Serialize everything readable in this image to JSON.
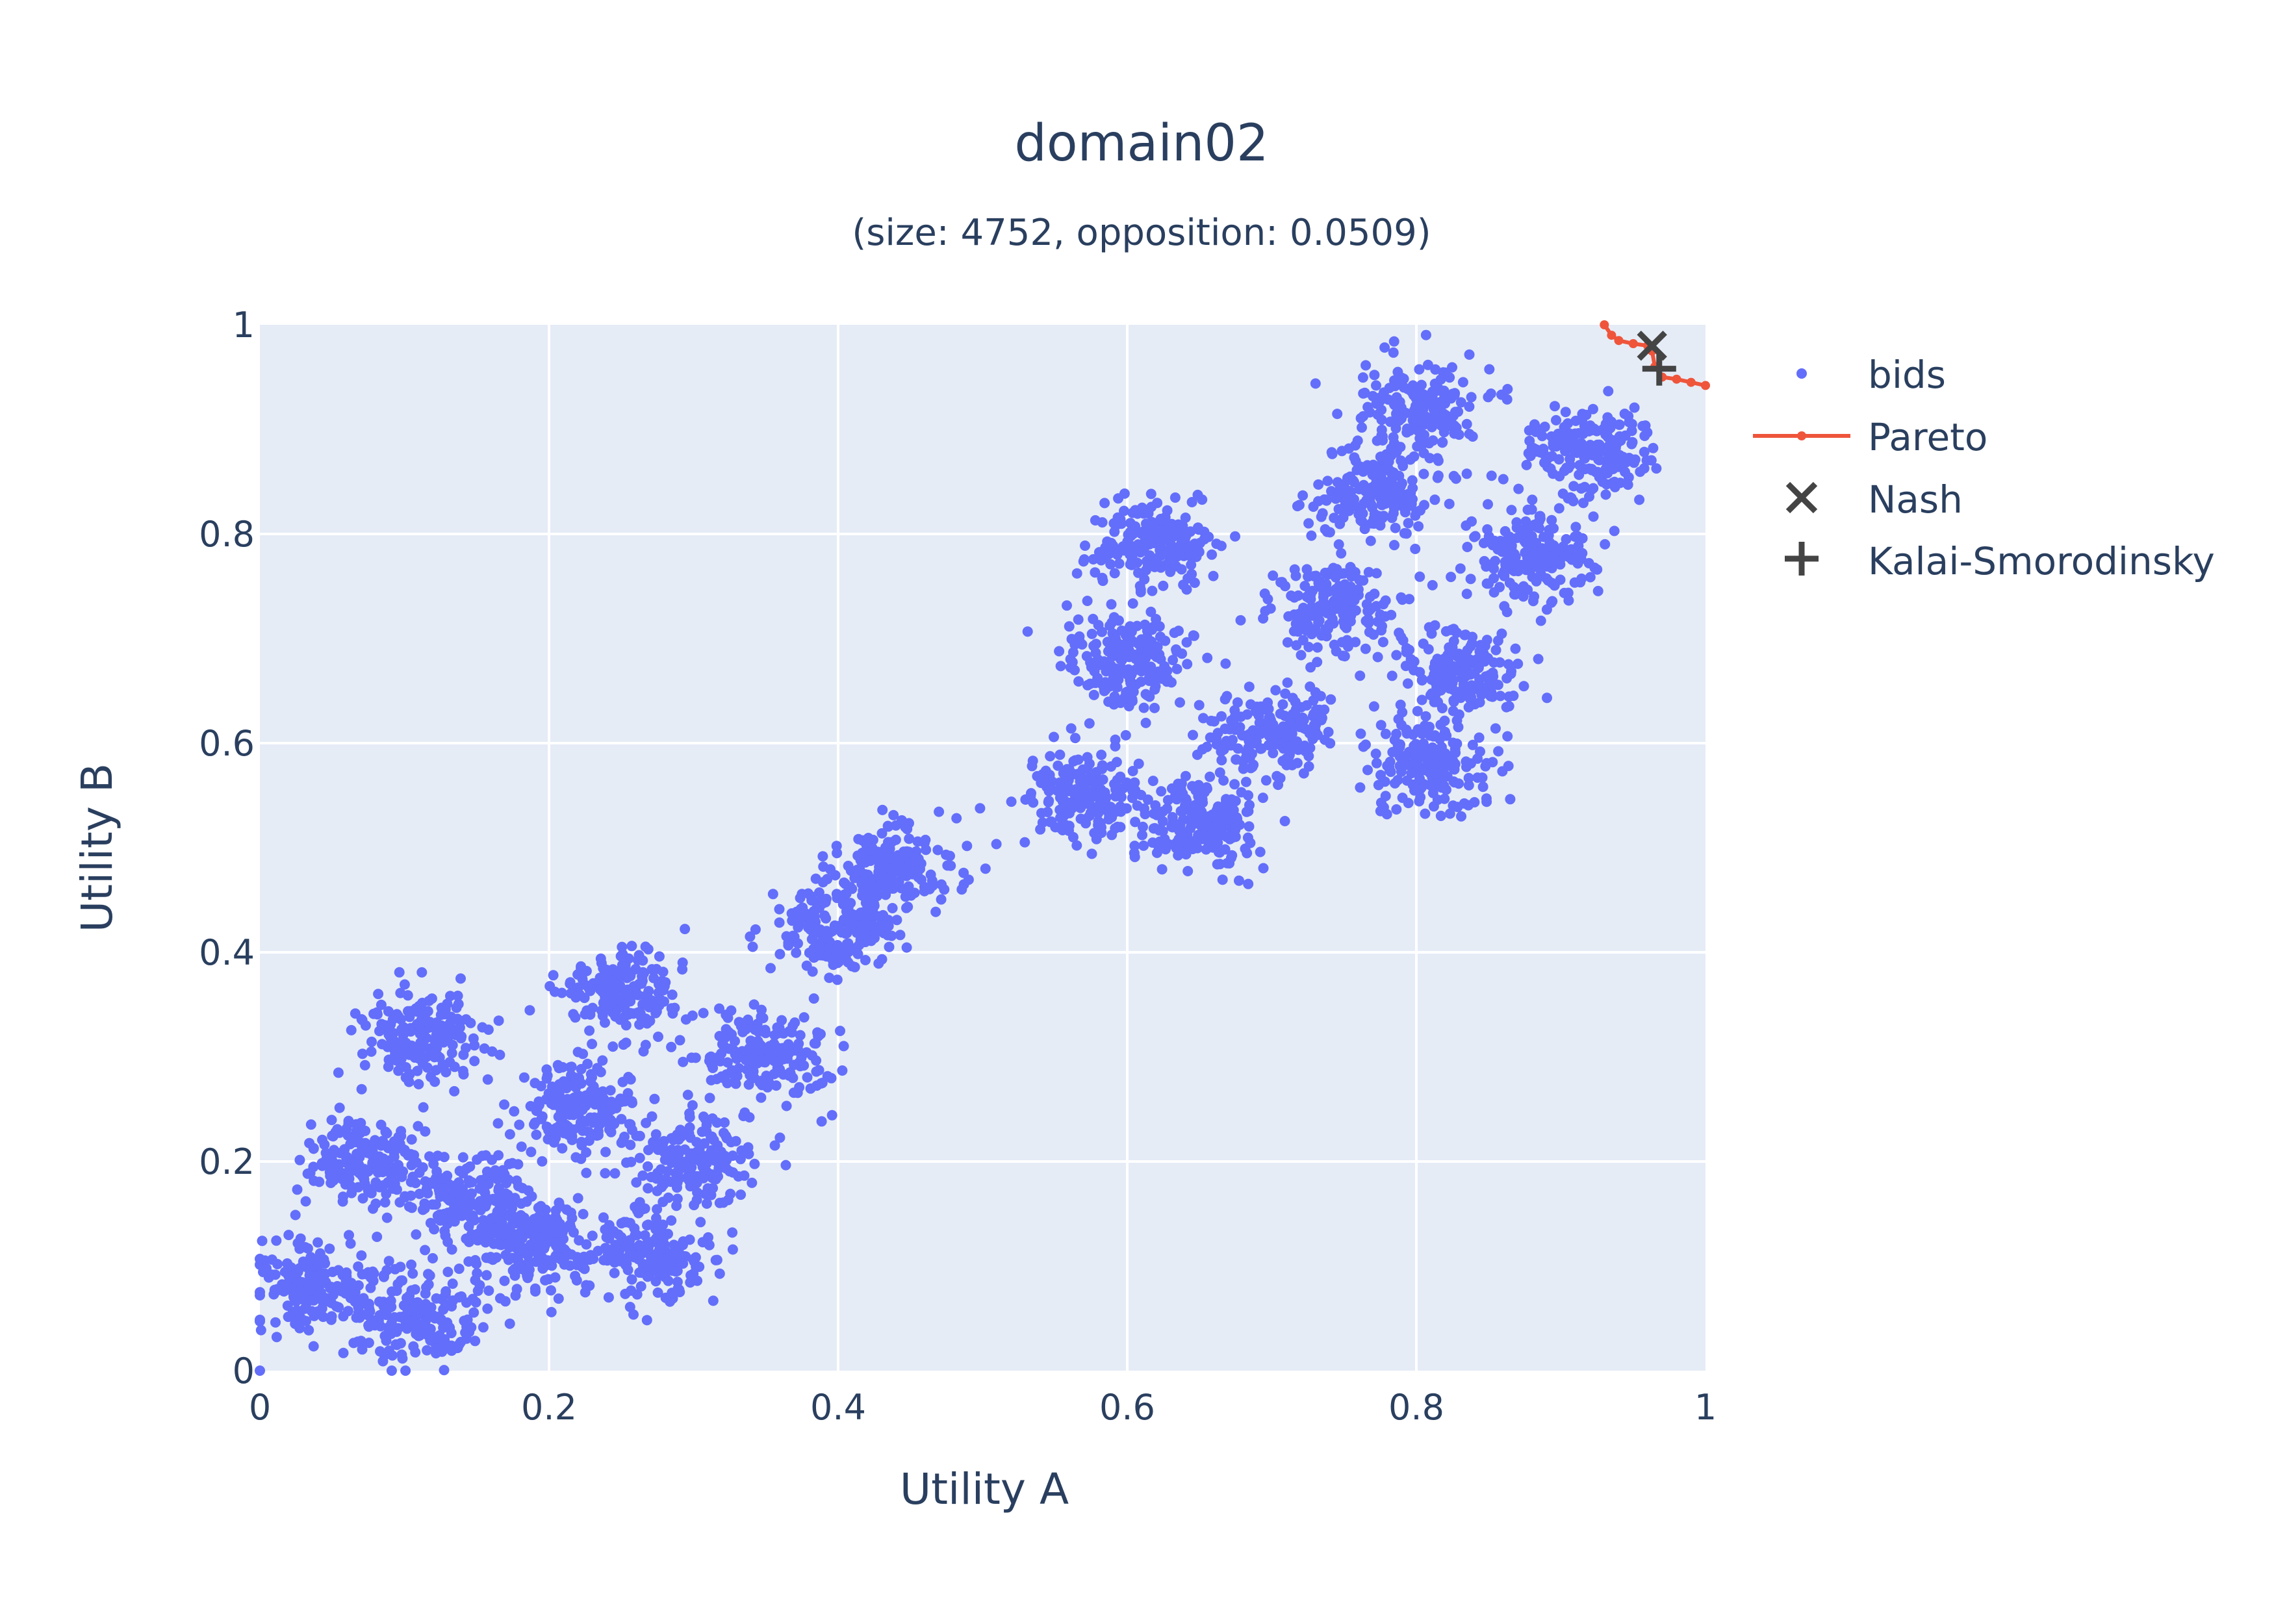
{
  "chart_data": {
    "type": "scatter",
    "title": "domain02",
    "subtitle": "(size: 4752, opposition: 0.0509)",
    "xlabel": "Utility A",
    "ylabel": "Utility B",
    "xlim": [
      0,
      1
    ],
    "ylim": [
      0,
      1
    ],
    "xticks": [
      "0",
      "0.2",
      "0.4",
      "0.6",
      "0.8",
      "1"
    ],
    "yticks": [
      "0",
      "0.2",
      "0.4",
      "0.6",
      "0.8",
      "1"
    ],
    "grid": true,
    "legend_position": "right",
    "colors": {
      "bids": "#636efa",
      "pareto": "#ef553b",
      "marker": "#444444",
      "plot_bg": "#e5ecf6",
      "grid": "#ffffff",
      "text": "#2a3f5f"
    },
    "series": [
      {
        "name": "bids",
        "mode": "markers",
        "clusters": [
          {
            "x": 0.04,
            "y": 0.08
          },
          {
            "x": 0.11,
            "y": 0.05
          },
          {
            "x": 0.07,
            "y": 0.2
          },
          {
            "x": 0.15,
            "y": 0.16
          },
          {
            "x": 0.19,
            "y": 0.12
          },
          {
            "x": 0.22,
            "y": 0.25
          },
          {
            "x": 0.11,
            "y": 0.32
          },
          {
            "x": 0.25,
            "y": 0.36
          },
          {
            "x": 0.27,
            "y": 0.11
          },
          {
            "x": 0.3,
            "y": 0.2
          },
          {
            "x": 0.35,
            "y": 0.3
          },
          {
            "x": 0.4,
            "y": 0.42
          },
          {
            "x": 0.44,
            "y": 0.48
          },
          {
            "x": 0.57,
            "y": 0.55
          },
          {
            "x": 0.65,
            "y": 0.52
          },
          {
            "x": 0.7,
            "y": 0.61
          },
          {
            "x": 0.6,
            "y": 0.68
          },
          {
            "x": 0.62,
            "y": 0.79
          },
          {
            "x": 0.74,
            "y": 0.73
          },
          {
            "x": 0.77,
            "y": 0.84
          },
          {
            "x": 0.81,
            "y": 0.58
          },
          {
            "x": 0.83,
            "y": 0.67
          },
          {
            "x": 0.88,
            "y": 0.78
          },
          {
            "x": 0.92,
            "y": 0.88
          },
          {
            "x": 0.8,
            "y": 0.92
          }
        ]
      },
      {
        "name": "Pareto",
        "mode": "lines+markers",
        "x": [
          0.93,
          0.935,
          0.94,
          0.95,
          0.96,
          0.963,
          0.965,
          0.97,
          0.98,
          0.99,
          1.0
        ],
        "y": [
          1.0,
          0.99,
          0.985,
          0.982,
          0.98,
          0.975,
          0.96,
          0.95,
          0.948,
          0.945,
          0.942
        ]
      },
      {
        "name": "Nash",
        "mode": "markers",
        "symbol": "x",
        "x": [
          0.963
        ],
        "y": [
          0.98
        ]
      },
      {
        "name": "Kalai-Smorodinsky",
        "mode": "markers",
        "symbol": "cross",
        "x": [
          0.968
        ],
        "y": [
          0.958
        ]
      }
    ]
  }
}
